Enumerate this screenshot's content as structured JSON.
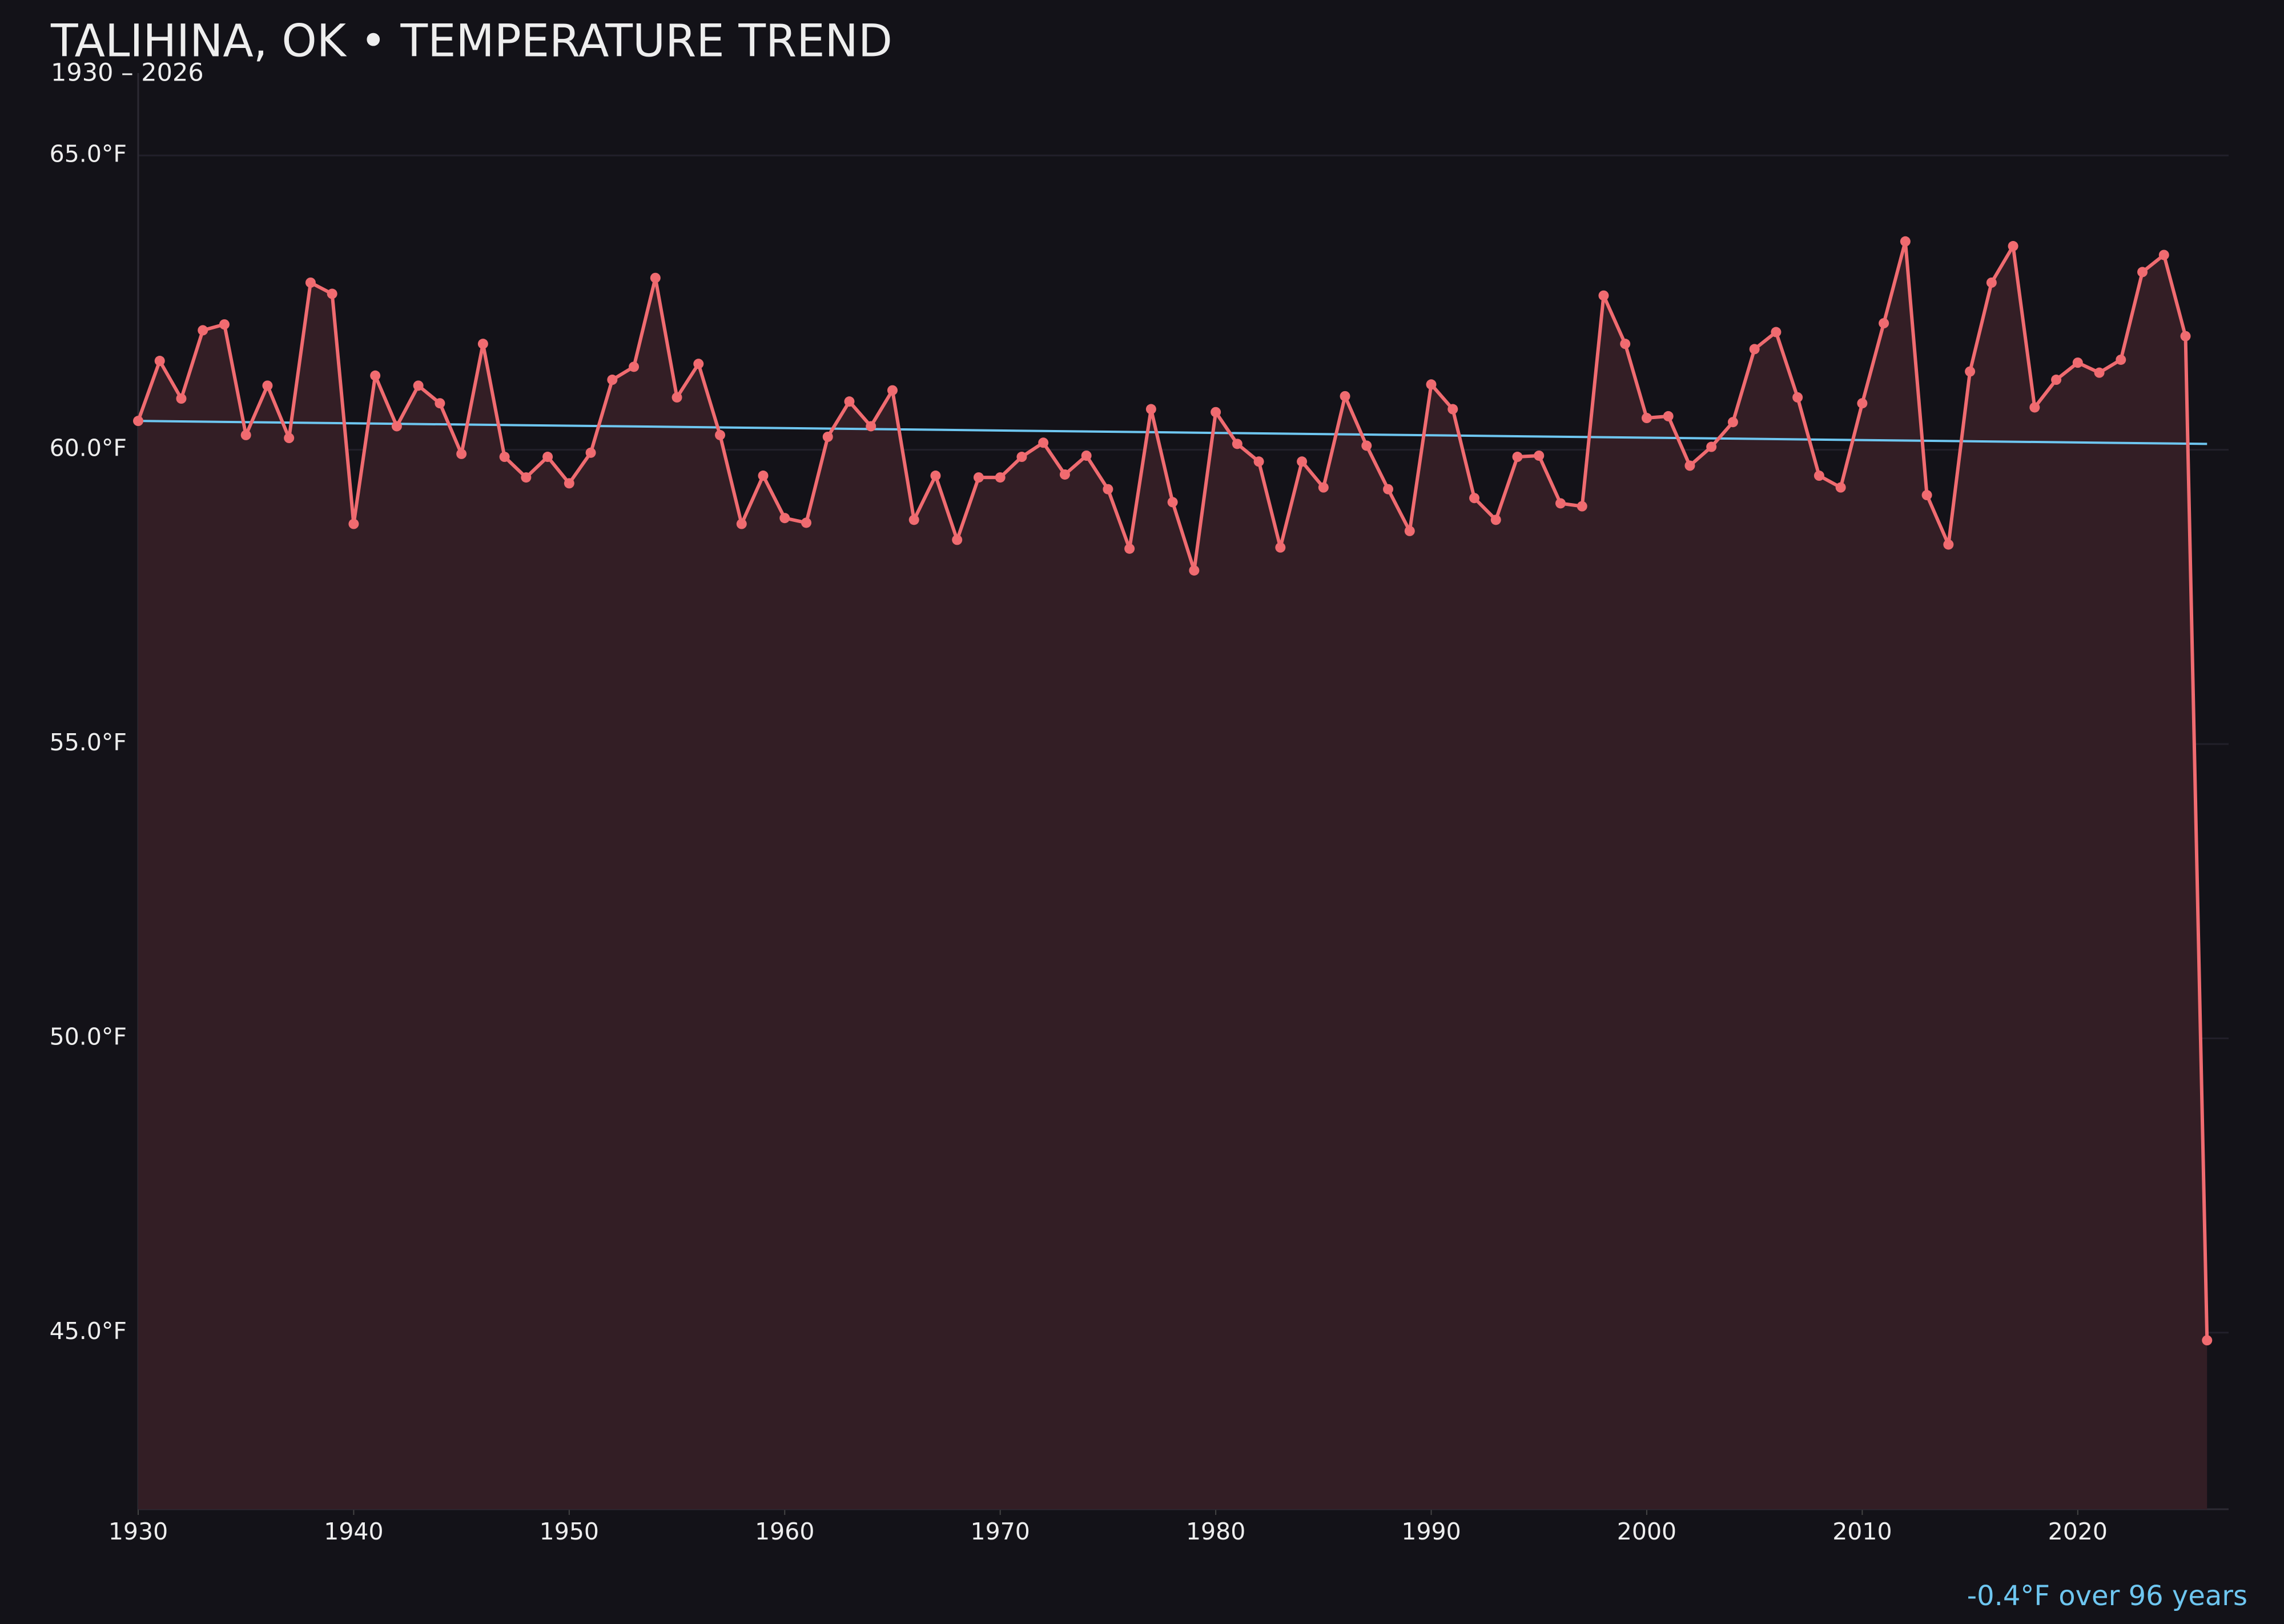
{
  "chart_data": {
    "type": "line",
    "title": "TALIHINA, OK • TEMPERATURE TREND",
    "subtitle": "1930 – 2026",
    "annotation": "-0.4°F over 96 years",
    "x": [
      1930,
      1931,
      1932,
      1933,
      1934,
      1935,
      1936,
      1937,
      1938,
      1939,
      1940,
      1941,
      1942,
      1943,
      1944,
      1945,
      1946,
      1947,
      1948,
      1949,
      1950,
      1951,
      1952,
      1953,
      1954,
      1955,
      1956,
      1957,
      1958,
      1959,
      1960,
      1961,
      1962,
      1963,
      1964,
      1965,
      1966,
      1967,
      1968,
      1969,
      1970,
      1971,
      1972,
      1973,
      1974,
      1975,
      1976,
      1977,
      1978,
      1979,
      1980,
      1981,
      1982,
      1983,
      1984,
      1985,
      1986,
      1987,
      1988,
      1989,
      1990,
      1991,
      1992,
      1993,
      1994,
      1995,
      1996,
      1997,
      1998,
      1999,
      2000,
      2001,
      2002,
      2003,
      2004,
      2005,
      2006,
      2007,
      2008,
      2009,
      2010,
      2011,
      2012,
      2013,
      2014,
      2015,
      2016,
      2017,
      2018,
      2019,
      2020,
      2021,
      2022,
      2023,
      2024,
      2025,
      2026
    ],
    "series": [
      {
        "name": "Temperature",
        "color": "#f06b70",
        "area_color": "#331e25",
        "values": [
          60.49,
          61.51,
          60.87,
          62.03,
          62.13,
          60.25,
          61.09,
          60.2,
          62.84,
          62.65,
          58.74,
          61.26,
          60.4,
          61.09,
          60.79,
          59.93,
          61.8,
          59.88,
          59.53,
          59.88,
          59.43,
          59.95,
          61.19,
          61.41,
          62.92,
          60.89,
          61.46,
          60.25,
          58.74,
          59.56,
          58.84,
          58.76,
          60.22,
          60.82,
          60.4,
          61.01,
          58.81,
          59.56,
          58.47,
          59.53,
          59.53,
          59.88,
          60.12,
          59.58,
          59.9,
          59.33,
          58.32,
          60.69,
          59.11,
          57.95,
          60.64,
          60.1,
          59.8,
          58.34,
          59.8,
          59.36,
          60.91,
          60.07,
          59.33,
          58.62,
          61.11,
          60.69,
          59.18,
          58.81,
          59.88,
          59.9,
          59.09,
          59.04,
          62.62,
          61.8,
          60.54,
          60.57,
          59.73,
          60.05,
          60.47,
          61.71,
          62.0,
          60.89,
          59.56,
          59.36,
          60.79,
          62.15,
          63.54,
          59.23,
          58.39,
          61.33,
          62.84,
          63.46,
          60.72,
          61.19,
          61.48,
          61.31,
          61.53,
          63.02,
          63.31,
          61.93,
          44.87
        ]
      }
    ],
    "trend": {
      "color": "#6ec6f0",
      "x": [
        1930,
        2026
      ],
      "values": [
        60.49,
        60.1
      ]
    },
    "xlim": [
      1930,
      2027
    ],
    "ylim": [
      42,
      66.4
    ],
    "xticks": [
      1930,
      1940,
      1950,
      1960,
      1970,
      1980,
      1990,
      2000,
      2010,
      2020
    ],
    "yticks": [
      {
        "value": 45,
        "label": "45.0°F"
      },
      {
        "value": 50,
        "label": "50.0°F"
      },
      {
        "value": 55,
        "label": "55.0°F"
      },
      {
        "value": 60,
        "label": "60.0°F"
      },
      {
        "value": 65,
        "label": "65.0°F"
      }
    ],
    "grid": true
  }
}
